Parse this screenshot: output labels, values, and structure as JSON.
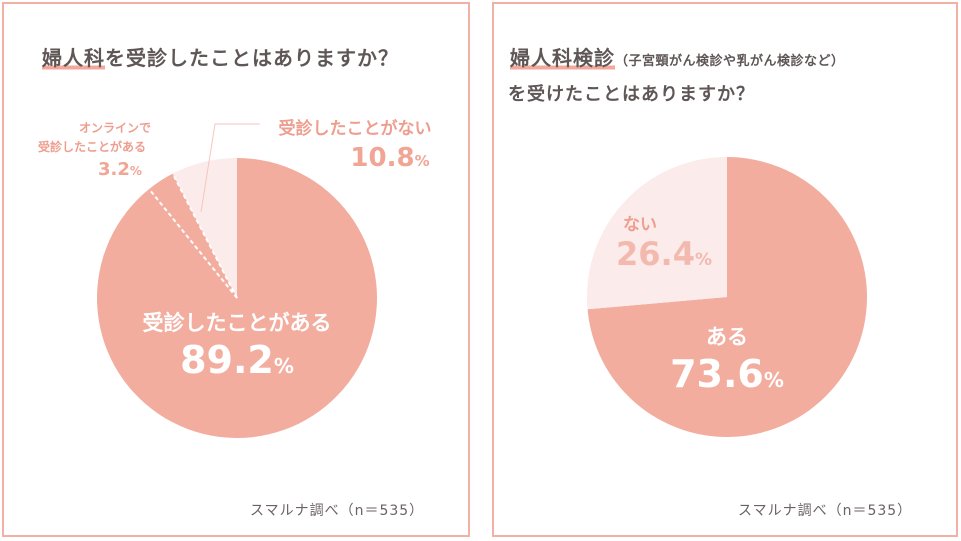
{
  "colors": {
    "primary": "#f2ad9f",
    "light": "#fbebea",
    "accent_text": "#ee9e8f",
    "light_text": "#f3b9ae",
    "white": "#ffffff"
  },
  "left": {
    "title": "婦人科",
    "title_rest": "を受診したことはありますか？",
    "footer": "スマルナ調べ（n＝535）"
  },
  "right": {
    "title": "婦人科検診",
    "title_paren": "（子宮頸がん検診や乳がん検診など）",
    "title_line2": "を受けたことはありますか？",
    "footer": "スマルナ調べ（n＝535）"
  },
  "chart_data": [
    {
      "type": "pie",
      "title": "婦人科を受診したことはありますか？",
      "slices": [
        {
          "label": "受診したことがある",
          "value": 89.2,
          "value_text": "89.2",
          "unit": "%"
        },
        {
          "label_line1": "オンラインで",
          "label_line2": "受診したことがある",
          "value": 3.2,
          "value_text": "3.2",
          "unit": "%"
        },
        {
          "label": "受診したことがない",
          "value": 10.8,
          "value_text": "10.8",
          "unit": "%"
        }
      ]
    },
    {
      "type": "pie",
      "title": "婦人科検診（子宮頸がん検診や乳がん検診など）を受けたことはありますか？",
      "slices": [
        {
          "label": "ある",
          "value": 73.6,
          "value_text": "73.6",
          "unit": "%"
        },
        {
          "label": "ない",
          "value": 26.4,
          "value_text": "26.4",
          "unit": "%"
        }
      ]
    }
  ]
}
